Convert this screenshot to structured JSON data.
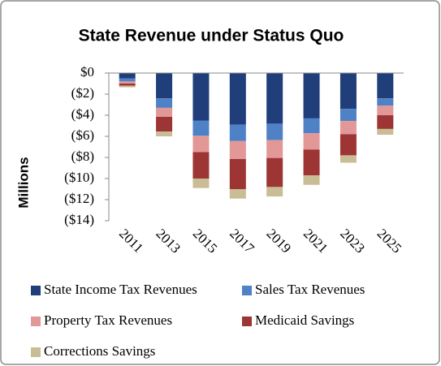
{
  "chart_data": {
    "type": "stacked_bar",
    "title": "State Revenue under Status Quo",
    "y_label": "Millions",
    "categories": [
      "2011",
      "2013",
      "2015",
      "2017",
      "2019",
      "2021",
      "2023",
      "2025"
    ],
    "series": [
      {
        "name": "State Income Tax Revenues",
        "color": "#1f3e7a",
        "values": [
          -0.5,
          -2.4,
          -4.5,
          -4.9,
          -4.8,
          -4.3,
          -3.4,
          -2.4
        ]
      },
      {
        "name": "Sales Tax Revenues",
        "color": "#4f81c6",
        "values": [
          -0.3,
          -0.9,
          -1.45,
          -1.55,
          -1.55,
          -1.4,
          -1.15,
          -0.7
        ]
      },
      {
        "name": "Property Tax Revenues",
        "color": "#e39898",
        "values": [
          -0.2,
          -0.85,
          -1.55,
          -1.7,
          -1.7,
          -1.55,
          -1.25,
          -0.9
        ]
      },
      {
        "name": "Medicaid Savings",
        "color": "#9e3535",
        "values": [
          -0.2,
          -1.4,
          -2.5,
          -2.85,
          -2.75,
          -2.45,
          -2.0,
          -1.3
        ]
      },
      {
        "name": "Corrections Savings",
        "color": "#c9bd95",
        "values": [
          -0.15,
          -0.45,
          -0.9,
          -0.9,
          -0.9,
          -0.9,
          -0.7,
          -0.55
        ]
      }
    ],
    "ylim": [
      0,
      -14
    ],
    "yticks": [
      {
        "value": 0,
        "label": "$0"
      },
      {
        "value": -2,
        "label": "($2)"
      },
      {
        "value": -4,
        "label": "($4)"
      },
      {
        "value": -6,
        "label": "($6)"
      },
      {
        "value": -8,
        "label": "($8)"
      },
      {
        "value": -10,
        "label": "($10)"
      },
      {
        "value": -12,
        "label": "($12)"
      },
      {
        "value": -14,
        "label": "($14)"
      }
    ],
    "grid": false,
    "legend": "bottom"
  }
}
